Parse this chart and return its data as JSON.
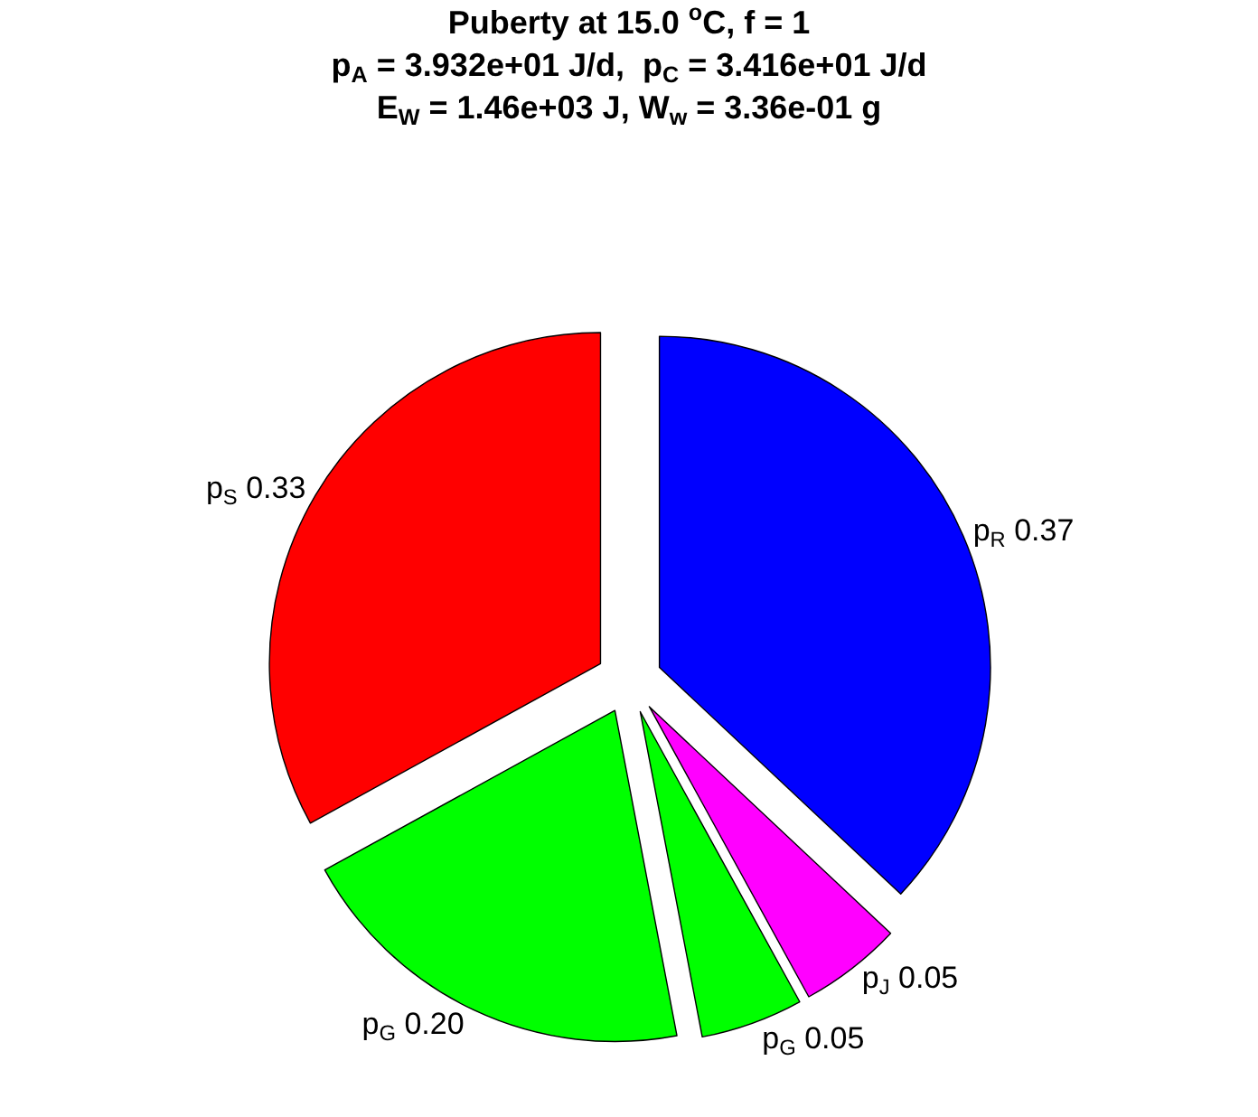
{
  "chart_data": {
    "type": "pie",
    "title": "Puberty at 15.0 $^{o}$C, f = 1\np$_{A}$ = 3.932e+01 J/d,  p$_{C}$ = 3.416e+01 J/d\nE$_{W}$ = 1.46e+03 J, W$_{w}$ = 3.36e-01 g",
    "categories": [
      "p$_{R}$",
      "p$_{J}$",
      "p$_{G}$",
      "p$_{G}$",
      "p$_{S}$"
    ],
    "values": [
      0.37,
      0.05,
      0.05,
      0.2,
      0.33
    ],
    "value_labels": [
      "0.37",
      "0.05",
      "0.05",
      "0.20",
      "0.33"
    ],
    "colors": [
      "#0000ff",
      "#ff00ff",
      "#00ff00",
      "#00ff00",
      "#ff0000"
    ],
    "legend": false
  }
}
